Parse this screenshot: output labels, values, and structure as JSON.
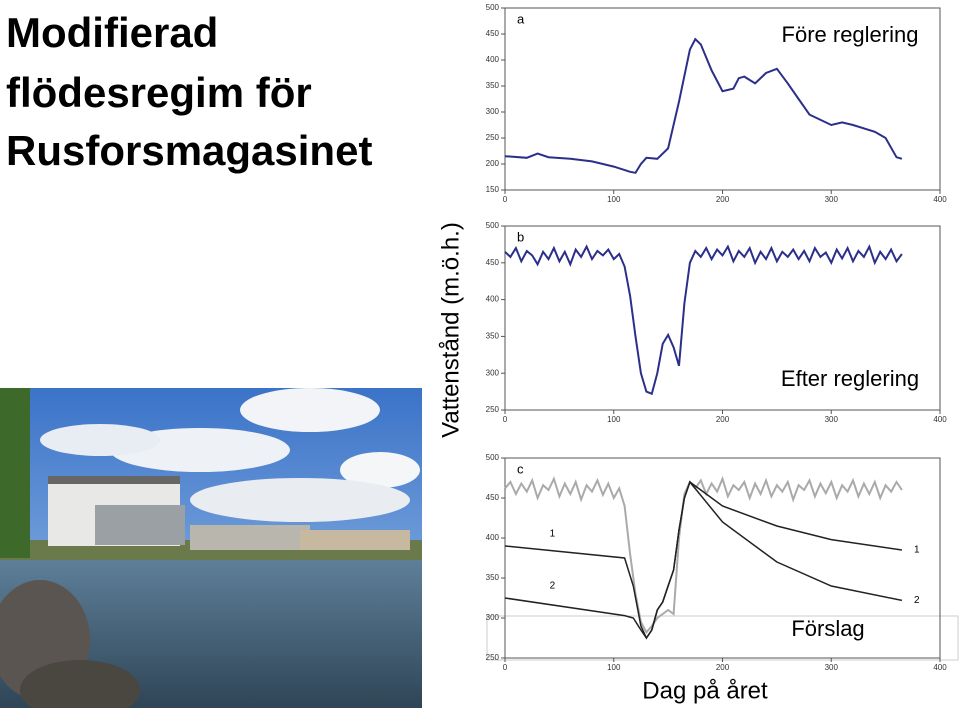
{
  "slide": {
    "title_lines": [
      "Modifierad",
      "flödesregim för",
      "Rusforsmagasinet"
    ]
  },
  "axis_labels": {
    "y": "Vattenstånd (m.ö.h.)",
    "x": "Dag på året"
  },
  "chart_data": [
    {
      "type": "line",
      "panel_label": "a",
      "annotation": "Före reglering",
      "x": [
        0,
        20,
        30,
        40,
        60,
        80,
        100,
        115,
        120,
        125,
        130,
        140,
        150,
        160,
        170,
        175,
        180,
        190,
        200,
        210,
        215,
        220,
        230,
        240,
        250,
        260,
        270,
        280,
        300,
        310,
        320,
        340,
        350,
        360,
        365
      ],
      "series": [
        {
          "color": "#2b2f8a",
          "values": [
            215,
            212,
            220,
            213,
            210,
            205,
            195,
            185,
            183,
            200,
            212,
            210,
            230,
            320,
            420,
            440,
            430,
            380,
            340,
            345,
            365,
            368,
            355,
            375,
            383,
            355,
            325,
            295,
            275,
            280,
            275,
            262,
            250,
            213,
            210
          ]
        }
      ],
      "xlim": [
        0,
        400
      ],
      "xticks": [
        0,
        100,
        200,
        300,
        400
      ],
      "ylim": [
        150,
        500
      ],
      "yticks": [
        150,
        200,
        250,
        300,
        350,
        400,
        450,
        500
      ]
    },
    {
      "type": "line",
      "panel_label": "b",
      "annotation": "Efter reglering",
      "x": [
        0,
        5,
        10,
        15,
        20,
        25,
        30,
        35,
        40,
        45,
        50,
        55,
        60,
        65,
        70,
        75,
        80,
        85,
        90,
        95,
        100,
        105,
        110,
        115,
        120,
        125,
        130,
        135,
        140,
        145,
        150,
        155,
        160,
        165,
        170,
        175,
        180,
        185,
        190,
        195,
        200,
        205,
        210,
        215,
        220,
        225,
        230,
        235,
        240,
        245,
        250,
        255,
        260,
        265,
        270,
        275,
        280,
        285,
        290,
        295,
        300,
        305,
        310,
        315,
        320,
        325,
        330,
        335,
        340,
        345,
        350,
        355,
        360,
        365
      ],
      "series": [
        {
          "color": "#2b2f8a",
          "values": [
            465,
            458,
            470,
            452,
            466,
            460,
            448,
            465,
            455,
            470,
            452,
            465,
            448,
            468,
            458,
            472,
            455,
            466,
            460,
            468,
            455,
            462,
            445,
            405,
            350,
            300,
            275,
            272,
            300,
            340,
            352,
            335,
            310,
            395,
            450,
            466,
            458,
            470,
            455,
            468,
            460,
            472,
            452,
            466,
            458,
            470,
            450,
            465,
            455,
            470,
            452,
            465,
            458,
            468,
            455,
            466,
            452,
            470,
            458,
            464,
            450,
            468,
            456,
            470,
            452,
            466,
            458,
            472,
            450,
            465,
            455,
            468,
            452,
            462
          ]
        }
      ],
      "xlim": [
        0,
        400
      ],
      "xticks": [
        0,
        100,
        200,
        300,
        400
      ],
      "ylim": [
        250,
        500
      ],
      "yticks": [
        250,
        300,
        350,
        400,
        450,
        500
      ]
    },
    {
      "type": "line",
      "panel_label": "c",
      "annotation": "Förslag",
      "x": [
        0,
        5,
        10,
        15,
        20,
        25,
        30,
        35,
        40,
        45,
        50,
        55,
        60,
        65,
        70,
        75,
        80,
        85,
        90,
        95,
        100,
        105,
        110,
        115,
        120,
        125,
        130,
        135,
        140,
        145,
        150,
        155,
        160,
        165,
        170,
        175,
        180,
        185,
        190,
        195,
        200,
        205,
        210,
        215,
        220,
        225,
        230,
        235,
        240,
        245,
        250,
        255,
        260,
        265,
        270,
        275,
        280,
        285,
        290,
        295,
        300,
        305,
        310,
        315,
        320,
        325,
        330,
        335,
        340,
        345,
        350,
        355,
        360,
        365
      ],
      "series": [
        {
          "color": "#aaaaaa",
          "values": [
            462,
            470,
            455,
            468,
            458,
            472,
            450,
            466,
            460,
            474,
            452,
            468,
            455,
            470,
            448,
            466,
            458,
            472,
            454,
            468,
            450,
            462,
            440,
            380,
            330,
            295,
            282,
            290,
            300,
            305,
            310,
            305,
            400,
            455,
            470,
            462,
            472,
            455,
            468,
            458,
            474,
            452,
            466,
            460,
            470,
            450,
            468,
            455,
            472,
            452,
            466,
            458,
            470,
            448,
            466,
            460,
            472,
            452,
            468,
            456,
            470,
            450,
            466,
            458,
            472,
            452,
            468,
            455,
            470,
            450,
            466,
            458,
            470,
            460
          ]
        },
        {
          "name": "1",
          "color": "#222222",
          "x": [
            0,
            110,
            118,
            125,
            130,
            135,
            140,
            145,
            150,
            155,
            160,
            165,
            170,
            200,
            250,
            300,
            365
          ],
          "values": [
            390,
            375,
            340,
            290,
            275,
            285,
            310,
            320,
            340,
            360,
            410,
            450,
            470,
            440,
            415,
            398,
            385
          ]
        },
        {
          "name": "2",
          "color": "#222222",
          "x": [
            0,
            110,
            118,
            125,
            130,
            135,
            140,
            145,
            150,
            155,
            160,
            165,
            170,
            200,
            250,
            300,
            365
          ],
          "values": [
            325,
            303,
            300,
            285,
            275,
            285,
            310,
            320,
            340,
            360,
            410,
            450,
            470,
            420,
            370,
            340,
            322
          ]
        }
      ],
      "xlim": [
        0,
        400
      ],
      "xticks": [
        0,
        100,
        200,
        300,
        400
      ],
      "ylim": [
        250,
        500
      ],
      "yticks": [
        250,
        300,
        350,
        400,
        450,
        500
      ]
    }
  ]
}
